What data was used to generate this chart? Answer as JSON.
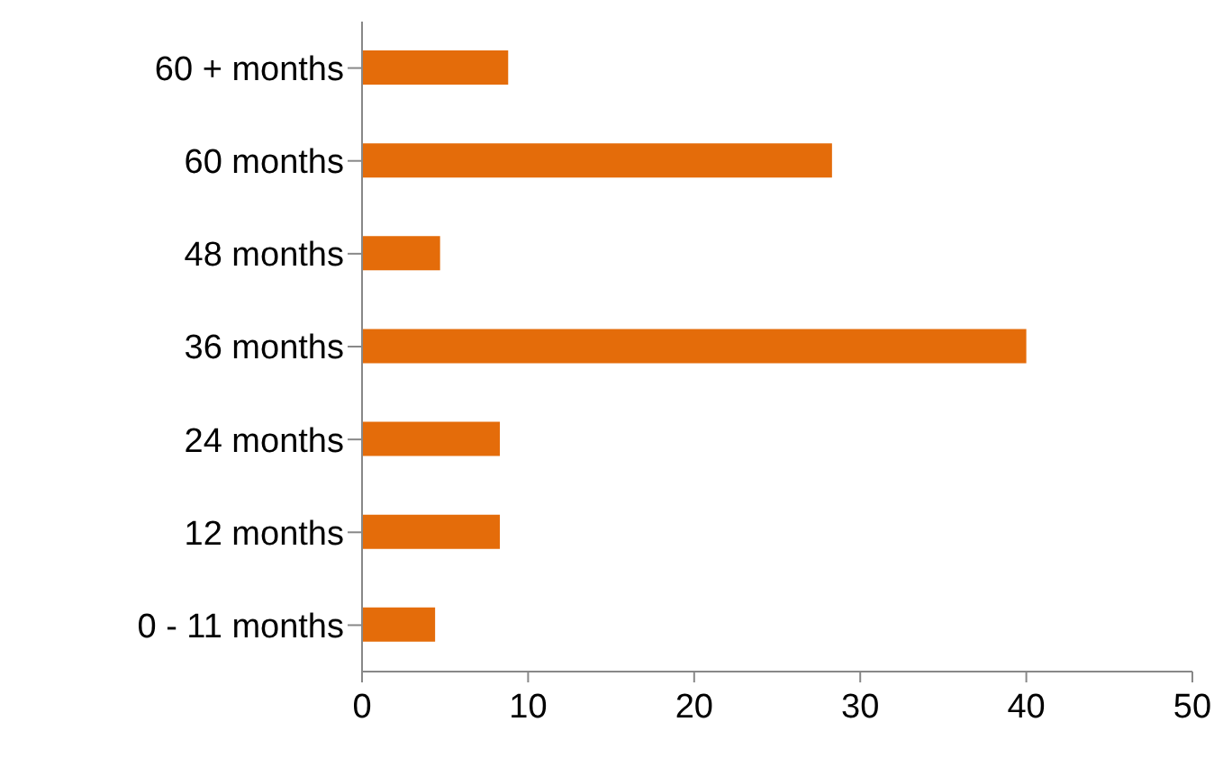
{
  "chart_data": {
    "type": "bar",
    "orientation": "horizontal",
    "categories": [
      "60 + months",
      "60 months",
      "48 months",
      "36 months",
      "24 months",
      "12 months",
      "0 - 11 months"
    ],
    "values": [
      8.8,
      28.3,
      4.7,
      40,
      8.3,
      8.3,
      4.4
    ],
    "color": "#e46c0a",
    "xlim": [
      0,
      50
    ],
    "xticks": [
      0,
      10,
      20,
      30,
      40,
      50
    ],
    "grid": false
  }
}
